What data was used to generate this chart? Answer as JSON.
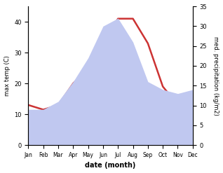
{
  "months": [
    "Jan",
    "Feb",
    "Mar",
    "Apr",
    "May",
    "Jun",
    "Jul",
    "Aug",
    "Sep",
    "Oct",
    "Nov",
    "Dec"
  ],
  "month_positions": [
    1,
    2,
    3,
    4,
    5,
    6,
    7,
    8,
    9,
    10,
    11,
    12
  ],
  "temperature": [
    13,
    11.5,
    13,
    20,
    25,
    33,
    41,
    41,
    33,
    19,
    13,
    13
  ],
  "precipitation": [
    9,
    9,
    11,
    16,
    22,
    30,
    32,
    26,
    16,
    14,
    13,
    14
  ],
  "temp_color": "#cc3333",
  "precip_color": "#c0c8f0",
  "ylabel_left": "max temp (C)",
  "ylabel_right": "med. precipitation (kg/m2)",
  "xlabel": "date (month)",
  "ylim_left": [
    0,
    45
  ],
  "ylim_right": [
    0,
    35
  ],
  "yticks_left": [
    0,
    10,
    20,
    30,
    40
  ],
  "yticks_right": [
    0,
    5,
    10,
    15,
    20,
    25,
    30,
    35
  ],
  "temp_linewidth": 1.8,
  "background_color": "#ffffff",
  "xlabel_fontsize": 7,
  "ylabel_fontsize": 6,
  "tick_fontsize": 6,
  "xtick_fontsize": 5.5
}
